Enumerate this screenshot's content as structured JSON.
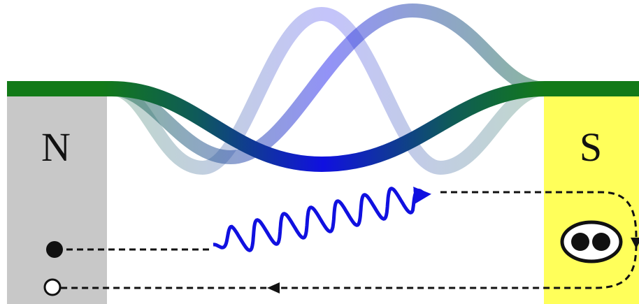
{
  "poles": {
    "north": "N",
    "south": "S"
  }
}
